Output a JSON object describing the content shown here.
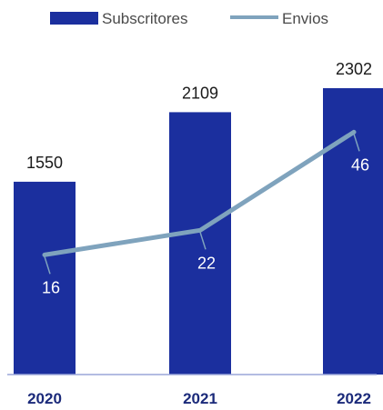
{
  "colors": {
    "bar": "#1b2f9e",
    "line": "#7fa3bd",
    "axis": "#9aa6d9",
    "x_label": "#1b2a7a"
  },
  "chart_data": {
    "type": "bar",
    "categories": [
      "2020",
      "2021",
      "2022"
    ],
    "series": [
      {
        "name": "Subscritores",
        "type": "bar",
        "values": [
          1550,
          2109,
          2302
        ]
      },
      {
        "name": "Envios",
        "type": "line",
        "values": [
          16,
          22,
          46
        ]
      }
    ],
    "legend": "top-center",
    "grid": false
  }
}
